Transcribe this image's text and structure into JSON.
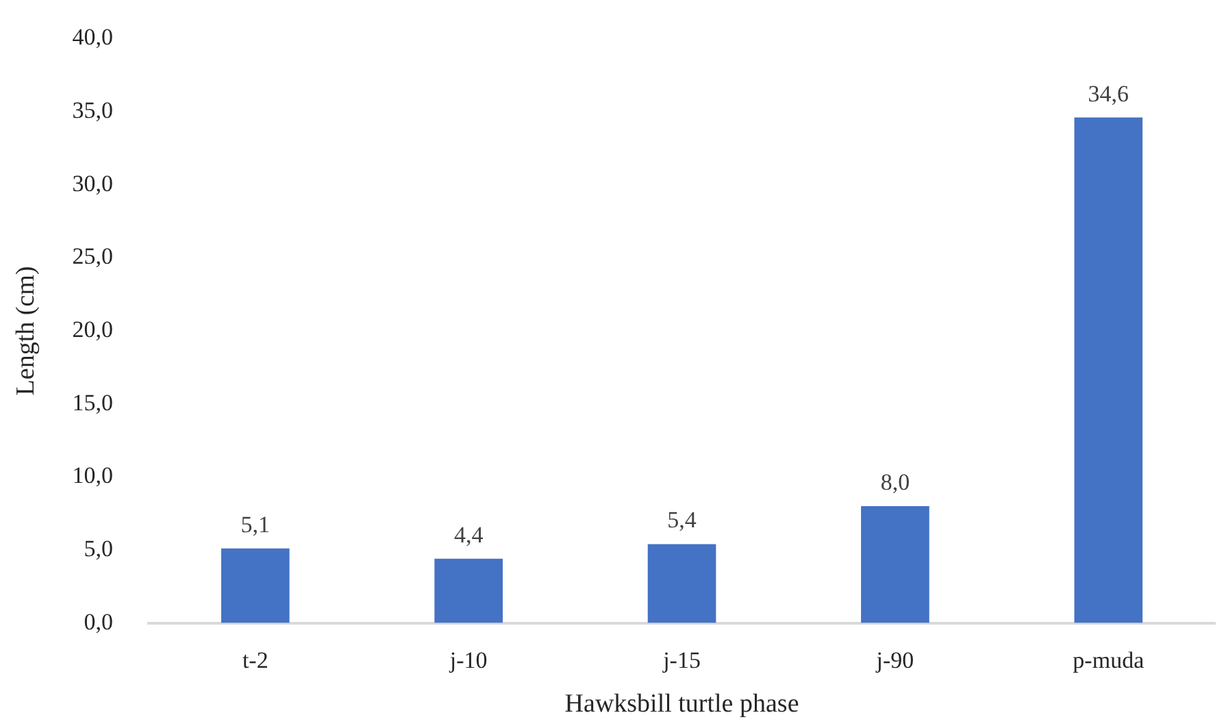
{
  "chart_data": {
    "type": "bar",
    "xlabel": "Hawksbill turtle phase",
    "ylabel": "Length (cm)",
    "categories": [
      "t-2",
      "j-10",
      "j-15",
      "j-90",
      "p-muda"
    ],
    "values": [
      5.1,
      4.4,
      5.4,
      8.0,
      34.6
    ],
    "value_labels": [
      "5,1",
      "4,4",
      "5,4",
      "8,0",
      "34,6"
    ],
    "color": "#4472c4",
    "ylim": [
      0,
      40
    ],
    "yticks": [
      {
        "value": 0,
        "label": "0,0"
      },
      {
        "value": 5,
        "label": "5,0"
      },
      {
        "value": 10,
        "label": "10,0"
      },
      {
        "value": 15,
        "label": "15,0"
      },
      {
        "value": 20,
        "label": "20,0"
      },
      {
        "value": 25,
        "label": "25,0"
      },
      {
        "value": 30,
        "label": "30,0"
      },
      {
        "value": 35,
        "label": "35,0"
      },
      {
        "value": 40,
        "label": "40,0"
      }
    ]
  }
}
